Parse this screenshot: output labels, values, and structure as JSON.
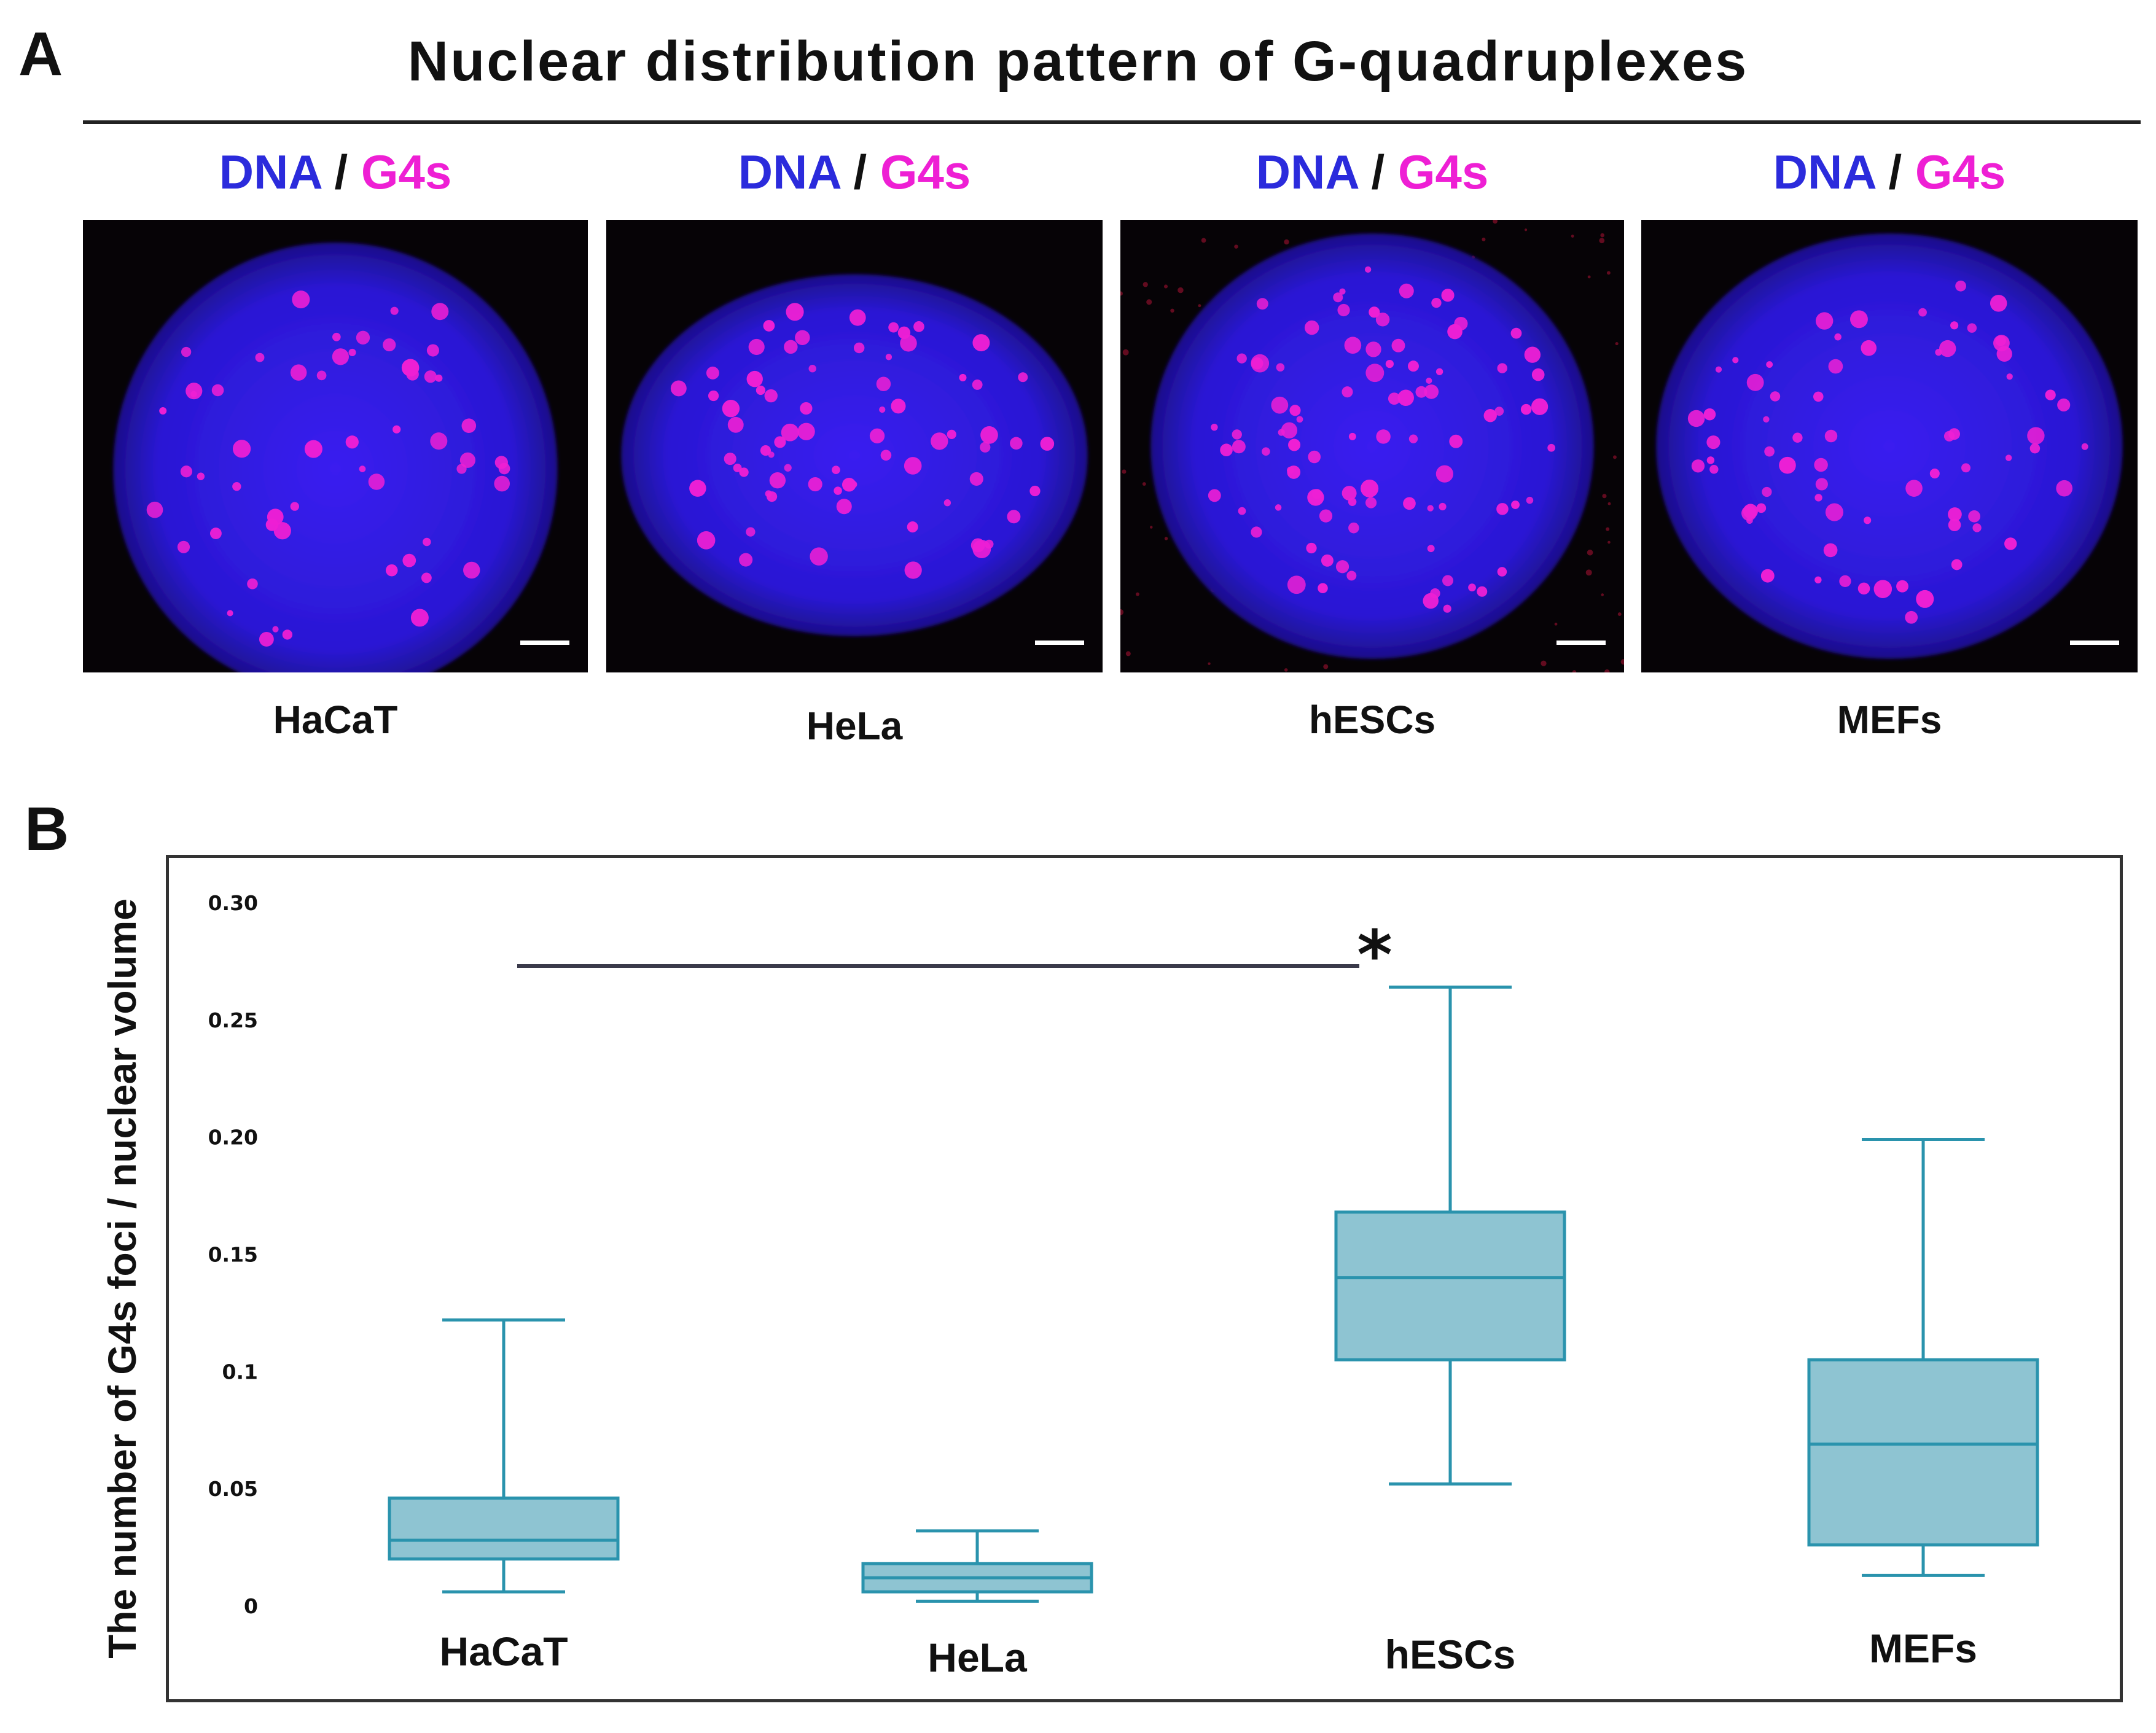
{
  "panel_a": {
    "letter": "A",
    "title": "Nuclear distribution pattern of G-quadruplexes",
    "channel_dna": "DNA",
    "channel_sep": "/",
    "channel_g4": "G4s",
    "colors": {
      "dna": "#2b2bdc",
      "g4": "#ee1fd4",
      "background": "#060306"
    },
    "cells": [
      {
        "label": "HaCaT"
      },
      {
        "label": "HeLa"
      },
      {
        "label": "hESCs"
      },
      {
        "label": "MEFs"
      }
    ]
  },
  "panel_b": {
    "letter": "B"
  },
  "chart_data": {
    "type": "box",
    "ylabel": "The number of G4s foci / nuclear volume",
    "ylim": [
      0,
      0.3
    ],
    "yticks": [
      {
        "value": 0,
        "label": "0"
      },
      {
        "value": 0.05,
        "label": "0.05"
      },
      {
        "value": 0.1,
        "label": "0.1"
      },
      {
        "value": 0.15,
        "label": "0.15"
      },
      {
        "value": 0.2,
        "label": "0.20"
      },
      {
        "value": 0.25,
        "label": "0.25"
      },
      {
        "value": 0.3,
        "label": "0.30"
      }
    ],
    "grid": false,
    "box_fill": "#8ec4d2",
    "box_stroke": "#2a93ad",
    "categories": [
      "HaCaT",
      "HeLa",
      "hESCs",
      "MEFs"
    ],
    "boxes": [
      {
        "category": "HaCaT",
        "min": 0.006,
        "q1": 0.02,
        "median": 0.028,
        "q3": 0.046,
        "max": 0.122
      },
      {
        "category": "HeLa",
        "min": 0.002,
        "q1": 0.006,
        "median": 0.012,
        "q3": 0.018,
        "max": 0.032
      },
      {
        "category": "hESCs",
        "min": 0.052,
        "q1": 0.105,
        "median": 0.14,
        "q3": 0.168,
        "max": 0.264
      },
      {
        "category": "MEFs",
        "min": 0.013,
        "q1": 0.026,
        "median": 0.069,
        "q3": 0.105,
        "max": 0.199
      }
    ],
    "significance": {
      "from": "HaCaT",
      "to": "hESCs",
      "y": 0.273,
      "label": "*"
    }
  }
}
